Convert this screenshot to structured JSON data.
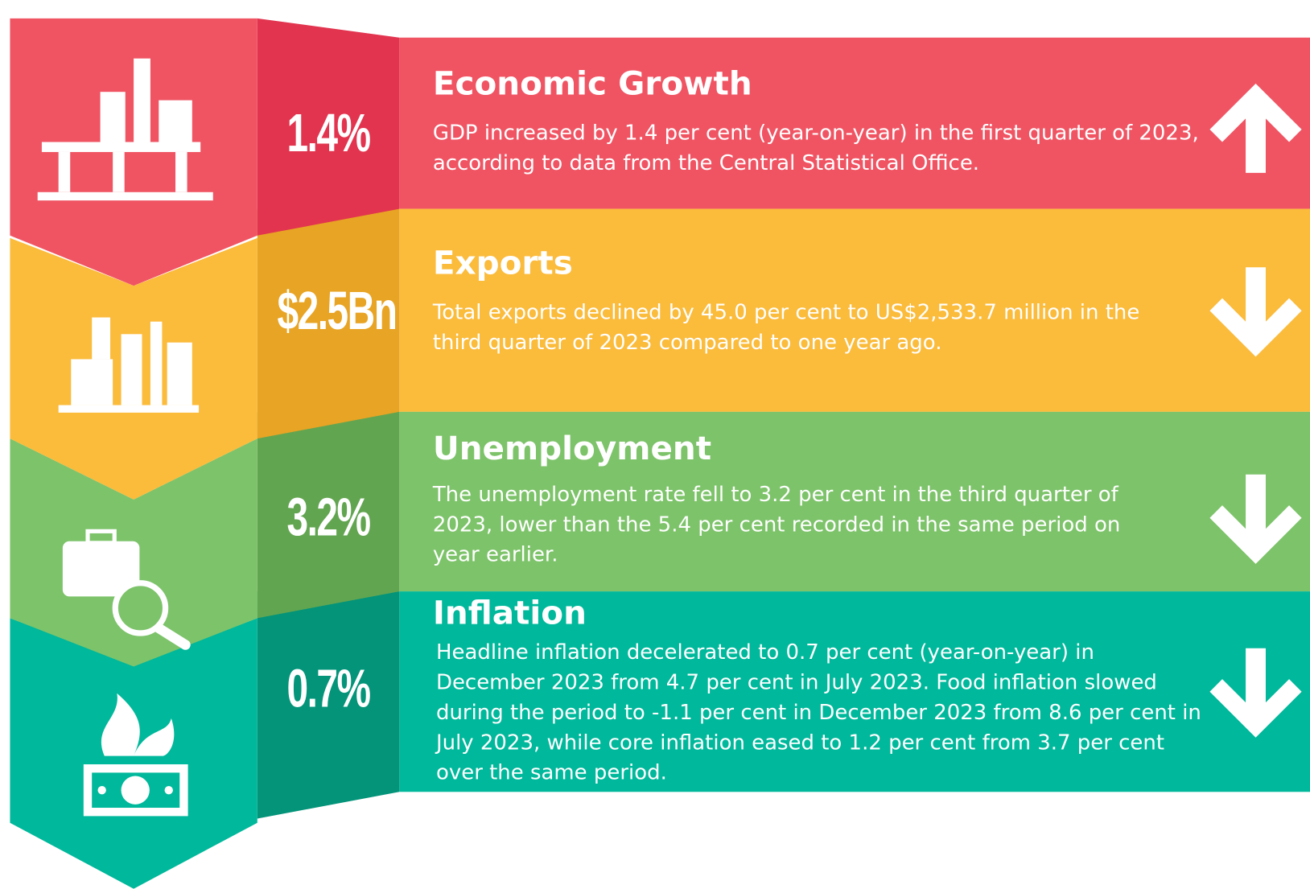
{
  "items": [
    {
      "value": "1.4%",
      "title": "Economic Growth",
      "description": "GDP increased by 1.4 per cent (year-on-year) in the first quarter of 2023, according to data from the Central Statistical Office.",
      "arrow": "up"
    },
    {
      "value": "$2.5Bn",
      "title": "Exports",
      "description": "Total exports declined by 45.0 per cent to US$2,533.7 million in the third quarter of 2023 compared to one year ago.",
      "arrow": "down"
    },
    {
      "value": "3.2%",
      "title": "Unemployment",
      "description": "The unemployment rate fell to 3.2 per cent in the third quarter of 2023, lower than the 5.4 per cent recorded in the same period on year earlier.",
      "arrow": "down"
    },
    {
      "value": "0.7%",
      "title": "Inflation",
      "description": "Headline inflation decelerated to 0.7 per cent (year-on-year) in December 2023 from 4.7 per cent in July 2023. Food inflation slowed during the period to -1.1 per cent in December 2023 from 8.6 per cent in July 2023, while core inflation eased to 1.2 per cent from 3.7 per cent over the same period.",
      "arrow": "down"
    }
  ]
}
